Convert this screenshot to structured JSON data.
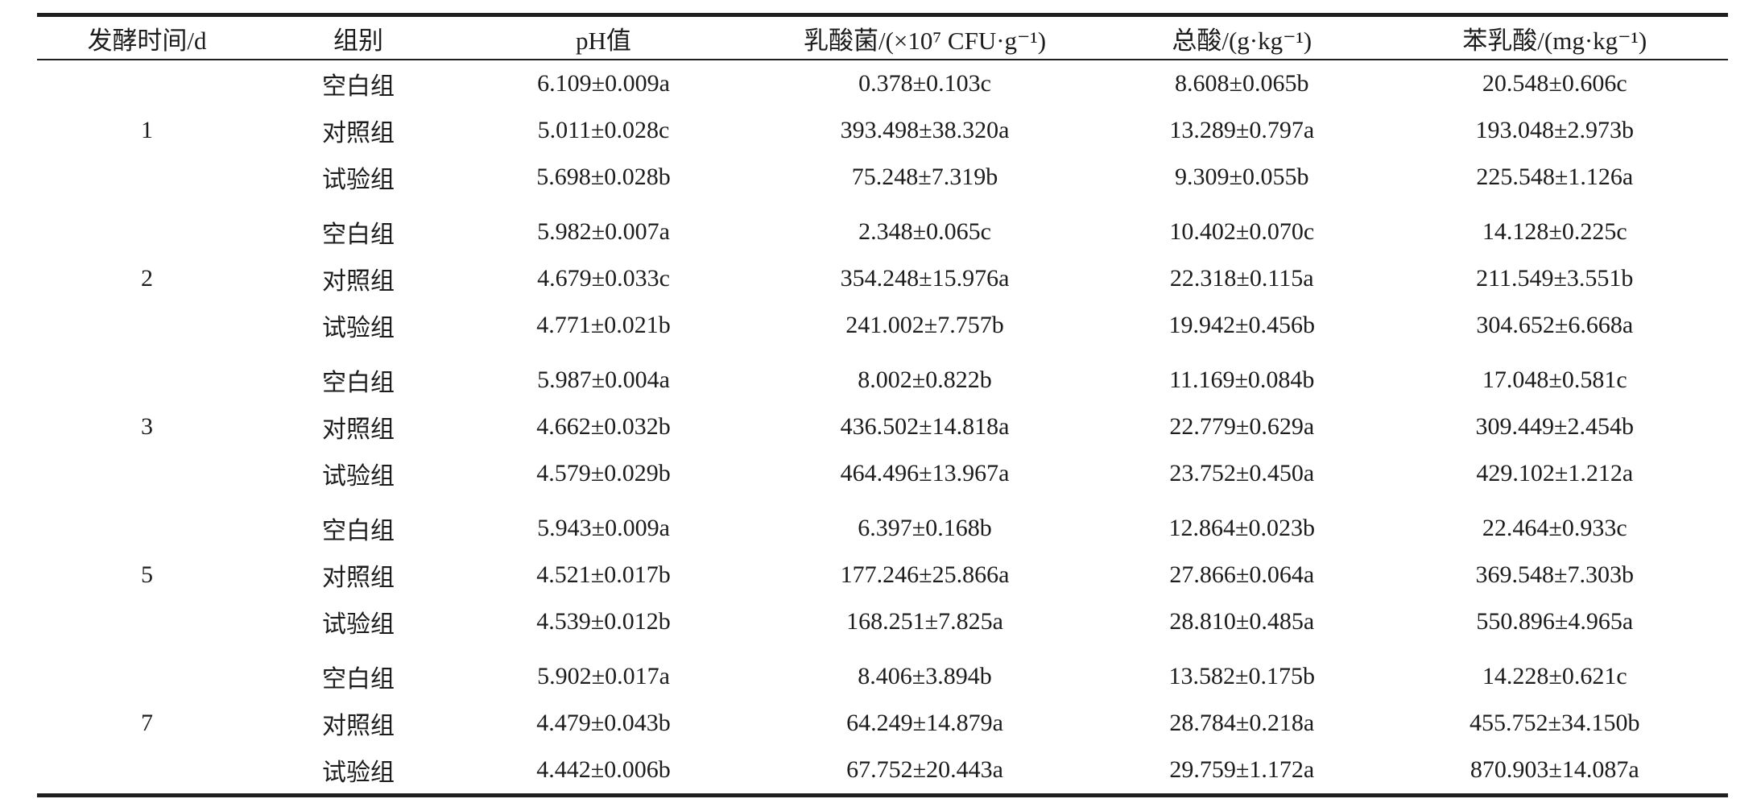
{
  "table": {
    "headers": {
      "time": "发酵时间/d",
      "group": "组别",
      "ph": "pH值",
      "lab": "乳酸菌/(×10⁷ CFU·g⁻¹)",
      "acid": "总酸/(g·kg⁻¹)",
      "pla": "苯乳酸/(mg·kg⁻¹)"
    },
    "groups": [
      {
        "day": "1",
        "rows": [
          {
            "group": "空白组",
            "ph": "6.109±0.009a",
            "lab": "0.378±0.103c",
            "acid": "8.608±0.065b",
            "pla": "20.548±0.606c"
          },
          {
            "group": "对照组",
            "ph": "5.011±0.028c",
            "lab": "393.498±38.320a",
            "acid": "13.289±0.797a",
            "pla": "193.048±2.973b"
          },
          {
            "group": "试验组",
            "ph": "5.698±0.028b",
            "lab": "75.248±7.319b",
            "acid": "9.309±0.055b",
            "pla": "225.548±1.126a"
          }
        ]
      },
      {
        "day": "2",
        "rows": [
          {
            "group": "空白组",
            "ph": "5.982±0.007a",
            "lab": "2.348±0.065c",
            "acid": "10.402±0.070c",
            "pla": "14.128±0.225c"
          },
          {
            "group": "对照组",
            "ph": "4.679±0.033c",
            "lab": "354.248±15.976a",
            "acid": "22.318±0.115a",
            "pla": "211.549±3.551b"
          },
          {
            "group": "试验组",
            "ph": "4.771±0.021b",
            "lab": "241.002±7.757b",
            "acid": "19.942±0.456b",
            "pla": "304.652±6.668a"
          }
        ]
      },
      {
        "day": "3",
        "rows": [
          {
            "group": "空白组",
            "ph": "5.987±0.004a",
            "lab": "8.002±0.822b",
            "acid": "11.169±0.084b",
            "pla": "17.048±0.581c"
          },
          {
            "group": "对照组",
            "ph": "4.662±0.032b",
            "lab": "436.502±14.818a",
            "acid": "22.779±0.629a",
            "pla": "309.449±2.454b"
          },
          {
            "group": "试验组",
            "ph": "4.579±0.029b",
            "lab": "464.496±13.967a",
            "acid": "23.752±0.450a",
            "pla": "429.102±1.212a"
          }
        ]
      },
      {
        "day": "5",
        "rows": [
          {
            "group": "空白组",
            "ph": "5.943±0.009a",
            "lab": "6.397±0.168b",
            "acid": "12.864±0.023b",
            "pla": "22.464±0.933c"
          },
          {
            "group": "对照组",
            "ph": "4.521±0.017b",
            "lab": "177.246±25.866a",
            "acid": "27.866±0.064a",
            "pla": "369.548±7.303b"
          },
          {
            "group": "试验组",
            "ph": "4.539±0.012b",
            "lab": "168.251±7.825a",
            "acid": "28.810±0.485a",
            "pla": "550.896±4.965a"
          }
        ]
      },
      {
        "day": "7",
        "rows": [
          {
            "group": "空白组",
            "ph": "5.902±0.017a",
            "lab": "8.406±3.894b",
            "acid": "13.582±0.175b",
            "pla": "14.228±0.621c"
          },
          {
            "group": "对照组",
            "ph": "4.479±0.043b",
            "lab": "64.249±14.879a",
            "acid": "28.784±0.218a",
            "pla": "455.752±34.150b"
          },
          {
            "group": "试验组",
            "ph": "4.442±0.006b",
            "lab": "67.752±20.443a",
            "acid": "29.759±1.172a",
            "pla": "870.903±14.087a"
          }
        ]
      }
    ]
  }
}
